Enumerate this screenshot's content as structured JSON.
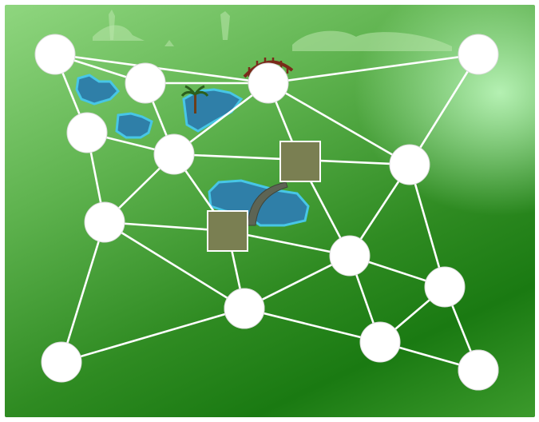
{
  "colors": {
    "board_light": "#8fd67f",
    "board_dark": "#1a7a12",
    "road": "#ffffff",
    "node": "#ffffff",
    "block": "#7a7f52",
    "lake": "#2f7fa8",
    "lake_edge": "#47c6e6",
    "bridge": "#7a2a1a",
    "tunnel": "#5d6454"
  },
  "icons": [
    "palm-tree-icon",
    "wooden-bridge-icon",
    "stone-arch-icon"
  ],
  "graph": {
    "nodes": [
      {
        "id": "n1"
      },
      {
        "id": "n2"
      },
      {
        "id": "n3"
      },
      {
        "id": "n4"
      },
      {
        "id": "n5"
      },
      {
        "id": "n6"
      },
      {
        "id": "n7"
      },
      {
        "id": "n8"
      },
      {
        "id": "n9"
      },
      {
        "id": "n10"
      },
      {
        "id": "n11"
      },
      {
        "id": "n12"
      },
      {
        "id": "n13"
      },
      {
        "id": "n14"
      },
      {
        "id": "n15"
      },
      {
        "id": "n16"
      }
    ],
    "edges": [
      [
        "n1",
        "n2"
      ],
      [
        "n1",
        "n4"
      ],
      [
        "n1",
        "n3"
      ],
      [
        "n3",
        "n5"
      ],
      [
        "n3",
        "n4"
      ],
      [
        "n5",
        "n6"
      ],
      [
        "n5",
        "n4"
      ],
      [
        "n5",
        "n12"
      ],
      [
        "n5",
        "n8"
      ],
      [
        "n5",
        "n9"
      ],
      [
        "n3",
        "n10"
      ],
      [
        "n10",
        "n6"
      ],
      [
        "n6",
        "n12"
      ],
      [
        "n4",
        "n10"
      ],
      [
        "n4",
        "n8"
      ],
      [
        "n10",
        "n7"
      ],
      [
        "n7",
        "n9"
      ],
      [
        "n7",
        "n11"
      ],
      [
        "n7",
        "n13"
      ],
      [
        "n9",
        "n11"
      ],
      [
        "n12",
        "n13"
      ],
      [
        "n12",
        "n11"
      ],
      [
        "n8",
        "n15"
      ],
      [
        "n15",
        "n8"
      ],
      [
        "n11",
        "n15"
      ],
      [
        "n11",
        "n14"
      ],
      [
        "n13",
        "n14"
      ],
      [
        "n14",
        "n15"
      ],
      [
        "n13",
        "n16"
      ],
      [
        "n14",
        "n16"
      ],
      [
        "n9",
        "n13"
      ]
    ],
    "blocks": [
      {
        "id": "b1"
      },
      {
        "id": "b2"
      }
    ]
  }
}
